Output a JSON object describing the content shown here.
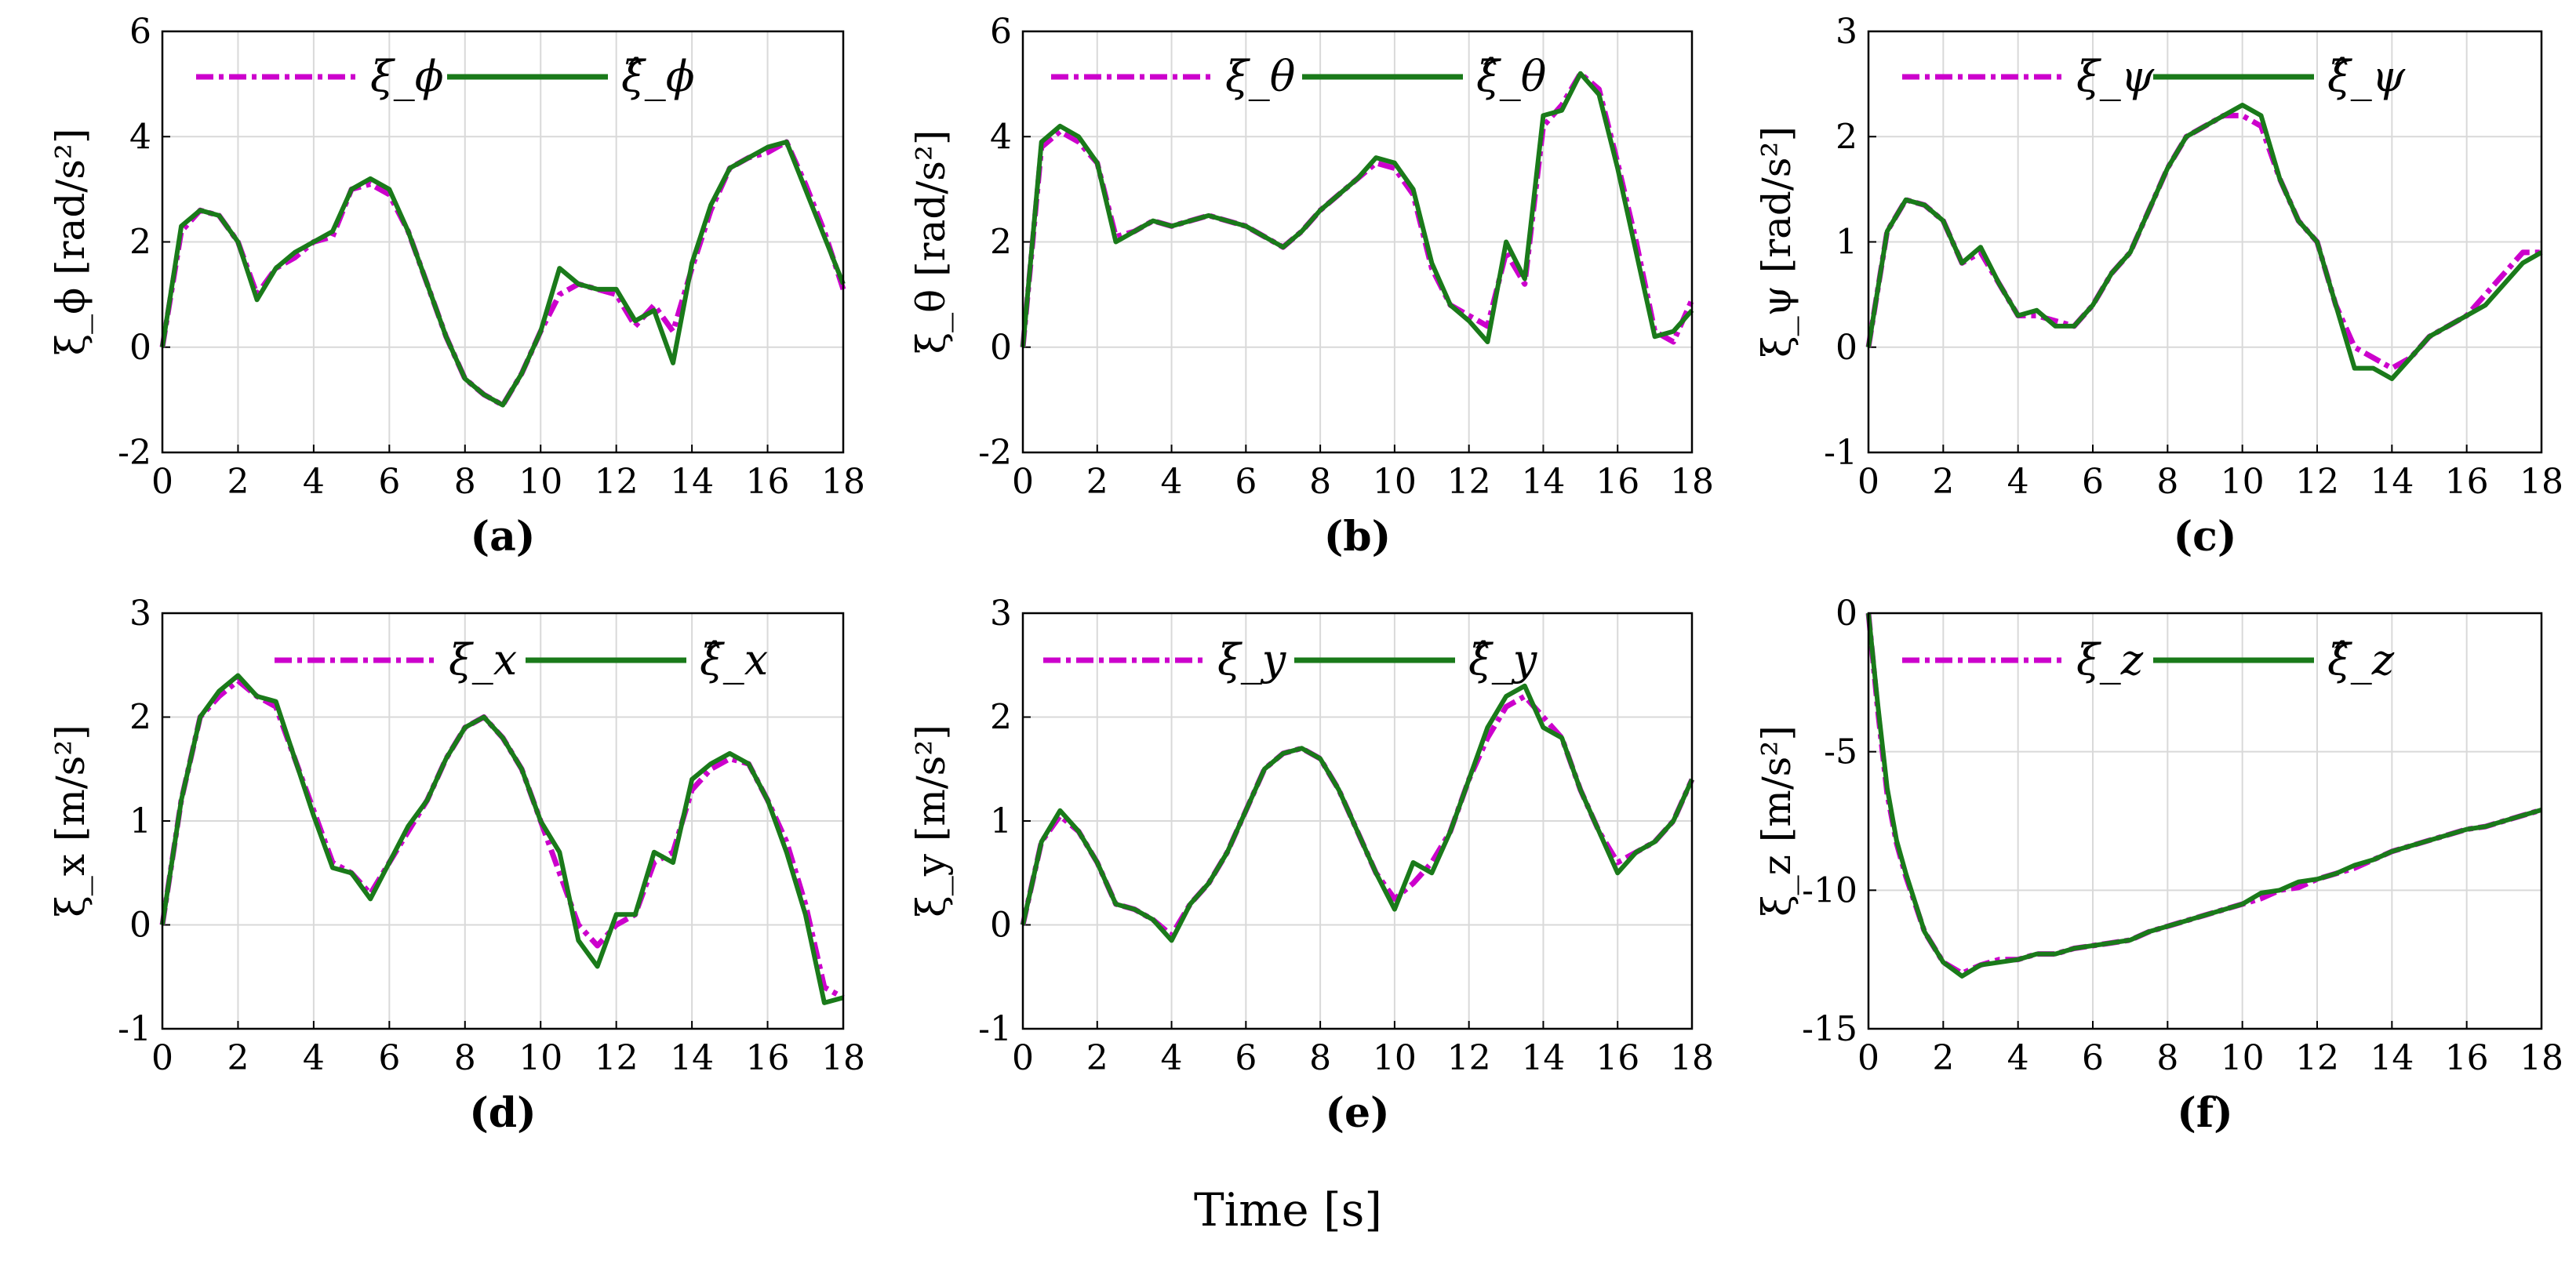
{
  "figure": {
    "xlabel": "Time [s]",
    "colors": {
      "measured": "#cc00cc",
      "estimated": "#1a7a1a",
      "grid": "#d9d9d9",
      "axis": "#000000"
    }
  },
  "chart_data": [
    {
      "type": "line",
      "panel": "(a)",
      "ylabel": "ξ_ϕ [rad/s²]",
      "legend": [
        "ξ_ϕ",
        "ξ̂_ϕ"
      ],
      "xlim": [
        0,
        18
      ],
      "ylim": [
        -2,
        6
      ],
      "xticks": [
        "0",
        "2",
        "4",
        "6",
        "8",
        "10",
        "12",
        "14",
        "16",
        "18"
      ],
      "yticks": [
        "-2",
        "0",
        "2",
        "4",
        "6"
      ],
      "x": [
        0,
        0.5,
        1,
        1.5,
        2,
        2.5,
        3,
        3.5,
        4,
        4.5,
        5,
        5.5,
        6,
        6.5,
        7,
        7.5,
        8,
        8.5,
        9,
        9.5,
        10,
        10.5,
        11,
        11.5,
        12,
        12.5,
        13,
        13.5,
        14,
        14.5,
        15,
        15.5,
        16,
        16.5,
        17,
        17.5,
        18
      ],
      "measured": [
        0,
        2.2,
        2.6,
        2.5,
        2.0,
        1.0,
        1.5,
        1.7,
        2.0,
        2.1,
        3.0,
        3.1,
        2.9,
        2.2,
        1.2,
        0.2,
        -0.6,
        -0.9,
        -1.1,
        -0.5,
        0.3,
        1.0,
        1.2,
        1.1,
        1.0,
        0.4,
        0.8,
        0.3,
        1.5,
        2.6,
        3.4,
        3.6,
        3.7,
        3.9,
        3.1,
        2.2,
        1.1
      ],
      "estimated": [
        0,
        2.3,
        2.6,
        2.5,
        2.0,
        0.9,
        1.5,
        1.8,
        2.0,
        2.2,
        3.0,
        3.2,
        3.0,
        2.2,
        1.2,
        0.2,
        -0.6,
        -0.9,
        -1.1,
        -0.5,
        0.3,
        1.5,
        1.2,
        1.1,
        1.1,
        0.5,
        0.7,
        -0.3,
        1.6,
        2.7,
        3.4,
        3.6,
        3.8,
        3.9,
        3.0,
        2.1,
        1.2
      ]
    },
    {
      "type": "line",
      "panel": "(b)",
      "ylabel": "ξ_θ [rad/s²]",
      "legend": [
        "ξ_θ",
        "ξ̂_θ"
      ],
      "xlim": [
        0,
        18
      ],
      "ylim": [
        -2,
        6
      ],
      "xticks": [
        "0",
        "2",
        "4",
        "6",
        "8",
        "10",
        "12",
        "14",
        "16",
        "18"
      ],
      "yticks": [
        "-2",
        "0",
        "2",
        "4",
        "6"
      ],
      "x": [
        0,
        0.5,
        1,
        1.5,
        2,
        2.5,
        3,
        3.5,
        4,
        4.5,
        5,
        5.5,
        6,
        6.5,
        7,
        7.5,
        8,
        8.5,
        9,
        9.5,
        10,
        10.5,
        11,
        11.5,
        12,
        12.5,
        13,
        13.5,
        14,
        14.5,
        15,
        15.5,
        16,
        16.5,
        17,
        17.5,
        18
      ],
      "measured": [
        0,
        3.8,
        4.1,
        3.9,
        3.5,
        2.1,
        2.2,
        2.4,
        2.3,
        2.4,
        2.5,
        2.4,
        2.3,
        2.1,
        1.9,
        2.2,
        2.6,
        2.9,
        3.2,
        3.5,
        3.4,
        2.9,
        1.5,
        0.8,
        0.6,
        0.4,
        1.8,
        1.2,
        4.2,
        4.6,
        5.2,
        4.9,
        3.5,
        2.0,
        0.3,
        0.1,
        0.9
      ],
      "estimated": [
        0,
        3.9,
        4.2,
        4.0,
        3.5,
        2.0,
        2.2,
        2.4,
        2.3,
        2.4,
        2.5,
        2.4,
        2.3,
        2.1,
        1.9,
        2.2,
        2.6,
        2.9,
        3.2,
        3.6,
        3.5,
        3.0,
        1.6,
        0.8,
        0.5,
        0.1,
        2.0,
        1.3,
        4.4,
        4.5,
        5.2,
        4.8,
        3.4,
        1.8,
        0.2,
        0.3,
        0.7
      ]
    },
    {
      "type": "line",
      "panel": "(c)",
      "ylabel": "ξ_ψ [rad/s²]",
      "legend": [
        "ξ_ψ",
        "ξ̂_ψ"
      ],
      "xlim": [
        0,
        18
      ],
      "ylim": [
        -1,
        3
      ],
      "xticks": [
        "0",
        "2",
        "4",
        "6",
        "8",
        "10",
        "12",
        "14",
        "16",
        "18"
      ],
      "yticks": [
        "-1",
        "0",
        "1",
        "2",
        "3"
      ],
      "x": [
        0,
        0.5,
        1,
        1.5,
        2,
        2.5,
        3,
        3.5,
        4,
        4.5,
        5,
        5.5,
        6,
        6.5,
        7,
        7.5,
        8,
        8.5,
        9,
        9.5,
        10,
        10.5,
        11,
        11.5,
        12,
        12.5,
        13,
        13.5,
        14,
        14.5,
        15,
        15.5,
        16,
        16.5,
        17,
        17.5,
        18
      ],
      "measured": [
        0,
        1.1,
        1.4,
        1.35,
        1.2,
        0.8,
        0.9,
        0.6,
        0.3,
        0.3,
        0.25,
        0.2,
        0.4,
        0.7,
        0.9,
        1.3,
        1.7,
        2.0,
        2.1,
        2.2,
        2.2,
        2.1,
        1.6,
        1.2,
        1.0,
        0.4,
        0.0,
        -0.1,
        -0.2,
        -0.1,
        0.1,
        0.2,
        0.3,
        0.5,
        0.7,
        0.9,
        0.9
      ],
      "estimated": [
        0,
        1.1,
        1.4,
        1.35,
        1.2,
        0.8,
        0.95,
        0.6,
        0.3,
        0.35,
        0.2,
        0.2,
        0.4,
        0.7,
        0.9,
        1.3,
        1.7,
        2.0,
        2.1,
        2.2,
        2.3,
        2.2,
        1.6,
        1.2,
        1.0,
        0.4,
        -0.2,
        -0.2,
        -0.3,
        -0.1,
        0.1,
        0.2,
        0.3,
        0.4,
        0.6,
        0.8,
        0.9
      ]
    },
    {
      "type": "line",
      "panel": "(d)",
      "ylabel": "ξ_x [m/s²]",
      "legend": [
        "ξ_x",
        "ξ̂_x"
      ],
      "xlim": [
        0,
        18
      ],
      "ylim": [
        -1,
        3
      ],
      "xticks": [
        "0",
        "2",
        "4",
        "6",
        "8",
        "10",
        "12",
        "14",
        "16",
        "18"
      ],
      "yticks": [
        "-1",
        "0",
        "1",
        "2",
        "3"
      ],
      "x": [
        0,
        0.5,
        1,
        1.5,
        2,
        2.5,
        3,
        3.5,
        4,
        4.5,
        5,
        5.5,
        6,
        6.5,
        7,
        7.5,
        8,
        8.5,
        9,
        9.5,
        10,
        10.5,
        11,
        11.5,
        12,
        12.5,
        13,
        13.5,
        14,
        14.5,
        15,
        15.5,
        16,
        16.5,
        17,
        17.5,
        18
      ],
      "measured": [
        0,
        1.2,
        2.0,
        2.2,
        2.35,
        2.2,
        2.1,
        1.6,
        1.1,
        0.6,
        0.5,
        0.3,
        0.6,
        0.9,
        1.2,
        1.6,
        1.9,
        2.0,
        1.8,
        1.5,
        1.0,
        0.5,
        0.0,
        -0.2,
        0.0,
        0.1,
        0.6,
        0.7,
        1.3,
        1.5,
        1.6,
        1.55,
        1.2,
        0.8,
        0.2,
        -0.6,
        -0.7
      ],
      "estimated": [
        0,
        1.2,
        2.0,
        2.25,
        2.4,
        2.2,
        2.15,
        1.6,
        1.05,
        0.55,
        0.5,
        0.25,
        0.6,
        0.95,
        1.2,
        1.6,
        1.9,
        2.0,
        1.8,
        1.5,
        1.0,
        0.7,
        -0.15,
        -0.4,
        0.1,
        0.1,
        0.7,
        0.6,
        1.4,
        1.55,
        1.65,
        1.55,
        1.2,
        0.7,
        0.1,
        -0.75,
        -0.7
      ]
    },
    {
      "type": "line",
      "panel": "(e)",
      "ylabel": "ξ_y [m/s²]",
      "legend": [
        "ξ_y",
        "ξ̂_y"
      ],
      "xlim": [
        0,
        18
      ],
      "ylim": [
        -1,
        3
      ],
      "xticks": [
        "0",
        "2",
        "4",
        "6",
        "8",
        "10",
        "12",
        "14",
        "16",
        "18"
      ],
      "yticks": [
        "-1",
        "0",
        "1",
        "2",
        "3"
      ],
      "x": [
        0,
        0.5,
        1,
        1.5,
        2,
        2.5,
        3,
        3.5,
        4,
        4.5,
        5,
        5.5,
        6,
        6.5,
        7,
        7.5,
        8,
        8.5,
        9,
        9.5,
        10,
        10.5,
        11,
        11.5,
        12,
        12.5,
        13,
        13.5,
        14,
        14.5,
        15,
        15.5,
        16,
        16.5,
        17,
        17.5,
        18
      ],
      "measured": [
        0,
        0.8,
        1.05,
        0.9,
        0.6,
        0.2,
        0.15,
        0.05,
        -0.1,
        0.2,
        0.4,
        0.7,
        1.1,
        1.5,
        1.65,
        1.7,
        1.6,
        1.3,
        0.9,
        0.5,
        0.25,
        0.4,
        0.6,
        0.9,
        1.4,
        1.8,
        2.1,
        2.2,
        2.0,
        1.8,
        1.3,
        0.9,
        0.6,
        0.7,
        0.8,
        1.0,
        1.4
      ],
      "estimated": [
        0,
        0.8,
        1.1,
        0.9,
        0.6,
        0.2,
        0.15,
        0.05,
        -0.15,
        0.2,
        0.4,
        0.7,
        1.1,
        1.5,
        1.65,
        1.7,
        1.6,
        1.3,
        0.9,
        0.5,
        0.15,
        0.6,
        0.5,
        0.9,
        1.4,
        1.9,
        2.2,
        2.3,
        1.9,
        1.8,
        1.3,
        0.9,
        0.5,
        0.7,
        0.8,
        1.0,
        1.4
      ]
    },
    {
      "type": "line",
      "panel": "(f)",
      "ylabel": "ξ_z [m/s²]",
      "legend": [
        "ξ_z",
        "ξ̂_z"
      ],
      "xlim": [
        0,
        18
      ],
      "ylim": [
        -15,
        0
      ],
      "xticks": [
        "0",
        "2",
        "4",
        "6",
        "8",
        "10",
        "12",
        "14",
        "16",
        "18"
      ],
      "yticks": [
        "-15",
        "-10",
        "-5",
        "0"
      ],
      "x": [
        0,
        0.25,
        0.5,
        0.75,
        1,
        1.5,
        2,
        2.5,
        3,
        3.5,
        4,
        4.5,
        5,
        5.5,
        6,
        6.5,
        7,
        7.5,
        8,
        8.5,
        9,
        9.5,
        10,
        10.5,
        11,
        11.5,
        12,
        12.5,
        13,
        13.5,
        14,
        14.5,
        15,
        15.5,
        16,
        16.5,
        17,
        17.5,
        18
      ],
      "measured": [
        0,
        -3.5,
        -6.5,
        -8.3,
        -9.5,
        -11.5,
        -12.6,
        -13.0,
        -12.7,
        -12.5,
        -12.5,
        -12.3,
        -12.3,
        -12.1,
        -12.0,
        -11.9,
        -11.8,
        -11.5,
        -11.3,
        -11.1,
        -10.9,
        -10.7,
        -10.5,
        -10.3,
        -10.0,
        -9.9,
        -9.6,
        -9.4,
        -9.2,
        -8.9,
        -8.6,
        -8.4,
        -8.2,
        -8.0,
        -7.8,
        -7.7,
        -7.5,
        -7.3,
        -7.1
      ],
      "estimated": [
        0,
        -3.3,
        -6.3,
        -8.2,
        -9.4,
        -11.5,
        -12.6,
        -13.1,
        -12.7,
        -12.6,
        -12.5,
        -12.3,
        -12.3,
        -12.1,
        -12.0,
        -11.9,
        -11.8,
        -11.5,
        -11.3,
        -11.1,
        -10.9,
        -10.7,
        -10.5,
        -10.1,
        -10.0,
        -9.7,
        -9.6,
        -9.4,
        -9.1,
        -8.9,
        -8.6,
        -8.4,
        -8.2,
        -8.0,
        -7.8,
        -7.7,
        -7.5,
        -7.3,
        -7.1
      ]
    }
  ]
}
